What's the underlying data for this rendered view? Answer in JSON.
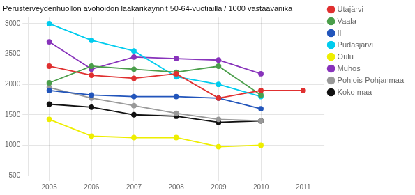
{
  "chart_data": {
    "type": "line",
    "title": "Perusterveydenhuollon avohoidon lääkärikäynnit 50-64-vuotiailla / 1000 vastaavanikä",
    "series": [
      {
        "name": "Utajärvi",
        "color": "#e03030",
        "x": [
          2005,
          2006,
          2007,
          2008,
          2009,
          2010,
          2011
        ],
        "values": [
          2300,
          2150,
          2100,
          2175,
          1775,
          1900,
          1900
        ]
      },
      {
        "name": "Vaala",
        "color": "#4a9e4a",
        "x": [
          2005,
          2006,
          2007,
          2008,
          2009,
          2010
        ],
        "values": [
          2025,
          2300,
          2250,
          2200,
          2300,
          1825
        ]
      },
      {
        "name": "Ii",
        "color": "#2255bb",
        "x": [
          2005,
          2006,
          2007,
          2008,
          2009,
          2010
        ],
        "values": [
          1900,
          1825,
          1800,
          1800,
          1775,
          1600
        ]
      },
      {
        "name": "Pudasjärvi",
        "color": "#00ccee",
        "x": [
          2005,
          2006,
          2007,
          2008,
          2009,
          2010
        ],
        "values": [
          3000,
          2725,
          2550,
          2125,
          2000,
          1800
        ]
      },
      {
        "name": "Oulu",
        "color": "#eeee00",
        "x": [
          2005,
          2006,
          2007,
          2008,
          2009,
          2010
        ],
        "values": [
          1425,
          1150,
          1125,
          1125,
          975,
          1000
        ]
      },
      {
        "name": "Muhos",
        "color": "#8833bb",
        "x": [
          2005,
          2006,
          2007,
          2008,
          2009,
          2010
        ],
        "values": [
          2700,
          2250,
          2450,
          2425,
          2400,
          2175
        ]
      },
      {
        "name": "Pohjois-Pohjanmaa",
        "color": "#999999",
        "x": [
          2005,
          2006,
          2007,
          2008,
          2009,
          2010
        ],
        "values": [
          1950,
          1775,
          1650,
          1525,
          1425,
          1400
        ]
      },
      {
        "name": "Koko maa",
        "color": "#111111",
        "x": [
          2005,
          2006,
          2007,
          2008,
          2009,
          2010
        ],
        "values": [
          1675,
          1625,
          1500,
          1475,
          1375,
          1400
        ]
      }
    ],
    "xlim": [
      2004.5,
      2011.5
    ],
    "ylim": [
      500,
      3100
    ],
    "xticks": [
      2005,
      2006,
      2007,
      2008,
      2009,
      2010,
      2011
    ],
    "yticks": [
      500,
      1000,
      1500,
      2000,
      2500,
      3000
    ],
    "grid": true,
    "legend": "right",
    "marker": "circle"
  }
}
